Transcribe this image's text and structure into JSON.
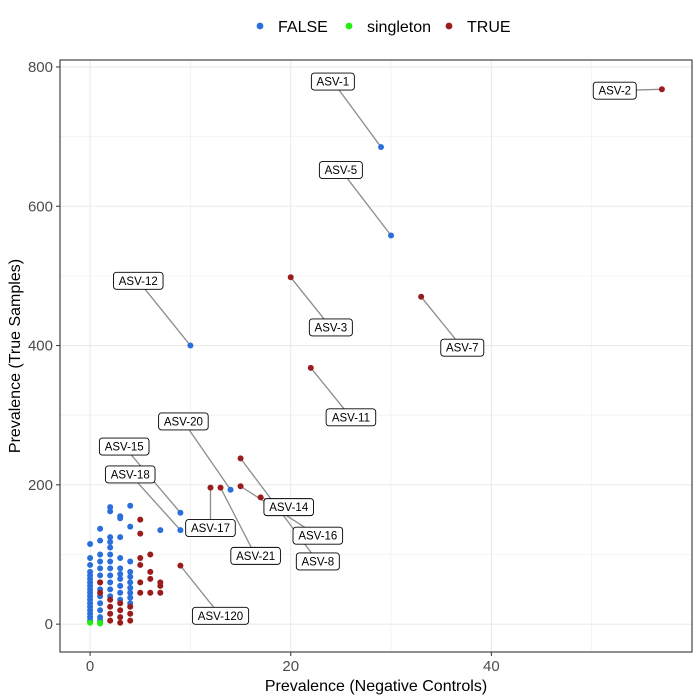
{
  "chart_data": {
    "type": "scatter",
    "title": "",
    "xlabel": "Prevalence (Negative Controls)",
    "ylabel": "Prevalence (True Samples)",
    "xlim": [
      -3,
      60
    ],
    "ylim": [
      -40,
      810
    ],
    "x_ticks": [
      0,
      20,
      40
    ],
    "y_ticks": [
      0,
      200,
      400,
      600,
      800
    ],
    "grid": true,
    "legend": {
      "position": "top",
      "entries": [
        {
          "name": "FALSE",
          "color": "#2a6fdb"
        },
        {
          "name": "singleton",
          "color": "#22ee11"
        },
        {
          "name": "TRUE",
          "color": "#9b1c1c"
        }
      ]
    },
    "series": [
      {
        "name": "FALSE",
        "color": "#2a6fdb",
        "points": [
          [
            29,
            685
          ],
          [
            30,
            558
          ],
          [
            10,
            400
          ],
          [
            9,
            160
          ],
          [
            9,
            135
          ],
          [
            14,
            193
          ],
          [
            0,
            115
          ],
          [
            0,
            95
          ],
          [
            0,
            85
          ],
          [
            0,
            75
          ],
          [
            0,
            70
          ],
          [
            0,
            65
          ],
          [
            0,
            60
          ],
          [
            0,
            55
          ],
          [
            0,
            50
          ],
          [
            0,
            45
          ],
          [
            0,
            40
          ],
          [
            0,
            35
          ],
          [
            0,
            30
          ],
          [
            0,
            25
          ],
          [
            0,
            20
          ],
          [
            0,
            15
          ],
          [
            0,
            10
          ],
          [
            0,
            5
          ],
          [
            1,
            137
          ],
          [
            1,
            120
          ],
          [
            1,
            100
          ],
          [
            1,
            90
          ],
          [
            1,
            80
          ],
          [
            1,
            70
          ],
          [
            1,
            60
          ],
          [
            1,
            50
          ],
          [
            1,
            40
          ],
          [
            1,
            30
          ],
          [
            1,
            20
          ],
          [
            1,
            10
          ],
          [
            1,
            5
          ],
          [
            2,
            168
          ],
          [
            2,
            162
          ],
          [
            2,
            125
          ],
          [
            2,
            118
          ],
          [
            2,
            110
          ],
          [
            2,
            100
          ],
          [
            2,
            90
          ],
          [
            2,
            80
          ],
          [
            2,
            70
          ],
          [
            2,
            60
          ],
          [
            2,
            50
          ],
          [
            2,
            40
          ],
          [
            3,
            155
          ],
          [
            3,
            152
          ],
          [
            3,
            125
          ],
          [
            3,
            95
          ],
          [
            3,
            80
          ],
          [
            3,
            72
          ],
          [
            3,
            65
          ],
          [
            3,
            55
          ],
          [
            3,
            45
          ],
          [
            3,
            35
          ],
          [
            4,
            170
          ],
          [
            4,
            140
          ],
          [
            4,
            90
          ],
          [
            4,
            75
          ],
          [
            4,
            68
          ],
          [
            4,
            60
          ],
          [
            4,
            52
          ],
          [
            4,
            45
          ],
          [
            4,
            38
          ],
          [
            4,
            30
          ],
          [
            7,
            135
          ]
        ]
      },
      {
        "name": "singleton",
        "color": "#22ee11",
        "points": [
          [
            0,
            2
          ],
          [
            1,
            1
          ],
          [
            1,
            2
          ]
        ]
      },
      {
        "name": "TRUE",
        "color": "#9b1c1c",
        "points": [
          [
            57,
            768
          ],
          [
            20,
            498
          ],
          [
            33,
            470
          ],
          [
            22,
            368
          ],
          [
            15,
            238
          ],
          [
            17,
            182
          ],
          [
            15,
            198
          ],
          [
            12,
            196
          ],
          [
            13,
            196
          ],
          [
            9,
            84
          ],
          [
            1,
            60
          ],
          [
            1,
            45
          ],
          [
            2,
            35
          ],
          [
            2,
            25
          ],
          [
            2,
            15
          ],
          [
            2,
            5
          ],
          [
            3,
            30
          ],
          [
            3,
            20
          ],
          [
            3,
            10
          ],
          [
            3,
            2
          ],
          [
            4,
            25
          ],
          [
            4,
            15
          ],
          [
            4,
            5
          ],
          [
            5,
            150
          ],
          [
            5,
            130
          ],
          [
            5,
            95
          ],
          [
            5,
            85
          ],
          [
            5,
            60
          ],
          [
            5,
            45
          ],
          [
            6,
            100
          ],
          [
            6,
            75
          ],
          [
            6,
            65
          ],
          [
            6,
            45
          ],
          [
            7,
            60
          ],
          [
            7,
            55
          ],
          [
            7,
            45
          ]
        ]
      }
    ],
    "annotations": [
      {
        "label": "ASV-1",
        "point": [
          29,
          685
        ],
        "label_pos": [
          24.2,
          779
        ]
      },
      {
        "label": "ASV-2",
        "point": [
          57,
          768
        ],
        "label_pos": [
          52.3,
          766
        ]
      },
      {
        "label": "ASV-5",
        "point": [
          30,
          558
        ],
        "label_pos": [
          25.0,
          652
        ]
      },
      {
        "label": "ASV-12",
        "point": [
          10,
          400
        ],
        "label_pos": [
          4.8,
          493
        ]
      },
      {
        "label": "ASV-3",
        "point": [
          20,
          498
        ],
        "label_pos": [
          24.0,
          426
        ]
      },
      {
        "label": "ASV-7",
        "point": [
          33,
          470
        ],
        "label_pos": [
          37.1,
          397
        ]
      },
      {
        "label": "ASV-11",
        "point": [
          22,
          368
        ],
        "label_pos": [
          26.0,
          297
        ]
      },
      {
        "label": "ASV-20",
        "point": [
          14,
          193
        ],
        "label_pos": [
          9.3,
          291
        ]
      },
      {
        "label": "ASV-15",
        "point": [
          9,
          160
        ],
        "label_pos": [
          3.4,
          255
        ]
      },
      {
        "label": "ASV-18",
        "point": [
          9,
          135
        ],
        "label_pos": [
          4.0,
          215
        ]
      },
      {
        "label": "ASV-14",
        "point": [
          17,
          182
        ],
        "label_pos": [
          19.8,
          168
        ]
      },
      {
        "label": "ASV-17",
        "point": [
          12,
          196
        ],
        "label_pos": [
          12.0,
          138
        ]
      },
      {
        "label": "ASV-16",
        "point": [
          15,
          198
        ],
        "label_pos": [
          22.7,
          127
        ]
      },
      {
        "label": "ASV-21",
        "point": [
          13,
          196
        ],
        "label_pos": [
          16.5,
          98
        ]
      },
      {
        "label": "ASV-8",
        "point": [
          15,
          238
        ],
        "label_pos": [
          22.7,
          90
        ]
      },
      {
        "label": "ASV-120",
        "point": [
          9,
          84
        ],
        "label_pos": [
          13.0,
          12
        ]
      }
    ]
  }
}
